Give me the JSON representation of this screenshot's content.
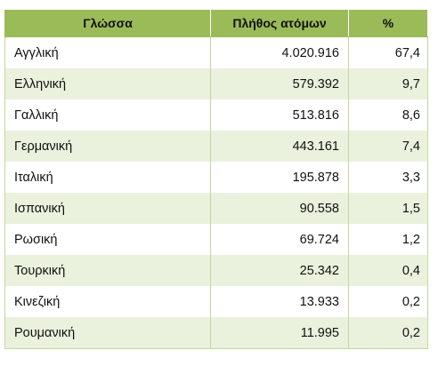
{
  "table": {
    "headers": [
      "Γλώσσα",
      "Πλήθος ατόμων",
      "%"
    ],
    "rows": [
      {
        "language": "Αγγλική",
        "count": "4.020.916",
        "percent": "67,4"
      },
      {
        "language": "Ελληνική",
        "count": "579.392",
        "percent": "9,7"
      },
      {
        "language": "Γαλλική",
        "count": "513.816",
        "percent": "8,6"
      },
      {
        "language": "Γερμανική",
        "count": "443.161",
        "percent": "7,4"
      },
      {
        "language": "Ιταλική",
        "count": "195.878",
        "percent": "3,3"
      },
      {
        "language": "Ισπανική",
        "count": "90.558",
        "percent": "1,5"
      },
      {
        "language": "Ρωσική",
        "count": "69.724",
        "percent": "1,2"
      },
      {
        "language": "Τουρκική",
        "count": "25.342",
        "percent": "0,4"
      },
      {
        "language": "Κινεζική",
        "count": "13.933",
        "percent": "0,2"
      },
      {
        "language": "Ρουμανική",
        "count": "11.995",
        "percent": "0,2"
      }
    ]
  },
  "colors": {
    "header_bg": "#9bbb59",
    "band_bg": "#eaf1dd",
    "border": "#c4d79b"
  }
}
